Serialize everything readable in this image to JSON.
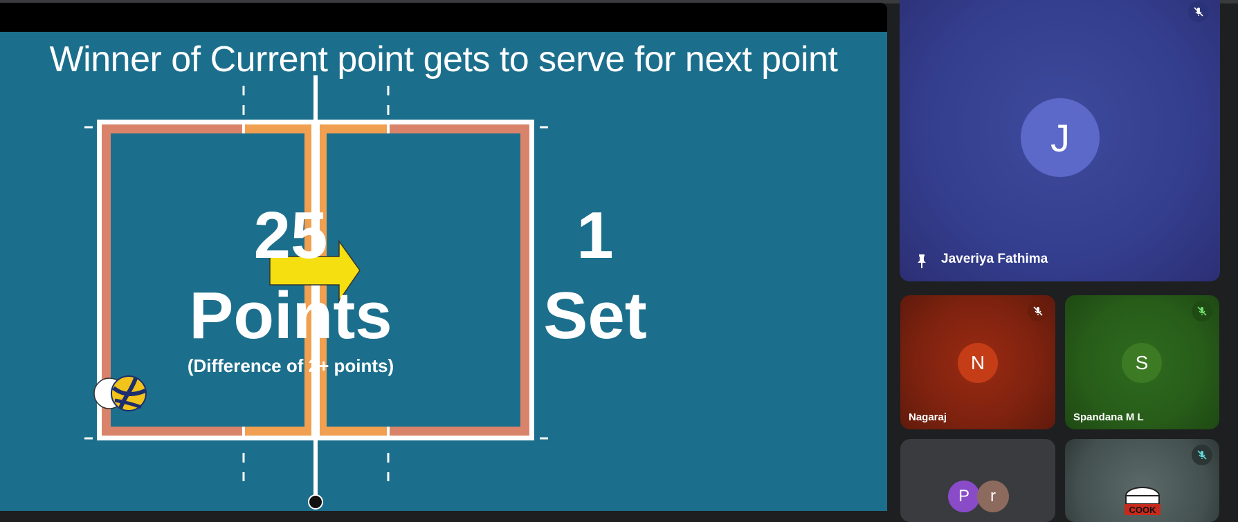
{
  "presentation": {
    "slide_title": "Winner of Current point gets to serve for next point",
    "left_number": "25",
    "left_label": "Points",
    "left_sub": "(Difference of 2+ points)",
    "right_number": "1",
    "right_label": "Set",
    "colors": {
      "slide_bg": "#1c6f8c",
      "court_outer": "#d9846a",
      "court_zone": "#f0a050",
      "arrow": "#f5df10"
    }
  },
  "participants": {
    "main": {
      "initial": "J",
      "name": "Javeriya Fathima",
      "muted": true,
      "pinned": true
    },
    "tiles": [
      {
        "initial": "N",
        "name": "Nagaraj",
        "muted": true
      },
      {
        "initial": "S",
        "name": "Spandana M L",
        "muted": true
      }
    ],
    "group": {
      "initials": [
        "P",
        "r"
      ]
    },
    "cook_tile": {
      "logo_text": "COOK",
      "muted": true
    }
  }
}
